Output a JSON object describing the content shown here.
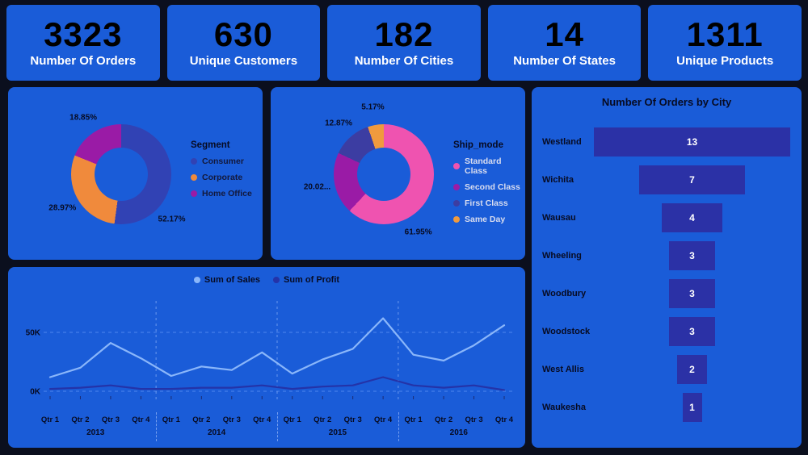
{
  "kpis": [
    {
      "value": "3323",
      "label": "Number Of Orders"
    },
    {
      "value": "630",
      "label": "Unique Customers"
    },
    {
      "value": "182",
      "label": "Number Of Cities"
    },
    {
      "value": "14",
      "label": "Number Of States"
    },
    {
      "value": "1311",
      "label": "Unique Products"
    }
  ],
  "colors": {
    "background": "#0b0f1e",
    "card": "#1a5cd8",
    "kpi_number": "#000000",
    "kpi_label": "#ffffff",
    "funnel_bar": "#2b31a6",
    "grid_line": "#4e86ee",
    "dark_text": "#070b22"
  },
  "chart_data": [
    {
      "type": "pie",
      "title": "Segment",
      "legend_title": "Segment",
      "legend_position": "right",
      "donut": true,
      "labels": [
        "Consumer",
        "Corporate",
        "Home Office"
      ],
      "values": [
        52.17,
        28.97,
        18.85
      ],
      "value_labels": [
        "52.17%",
        "28.97%",
        "18.85%"
      ],
      "colors": [
        "#3142b4",
        "#f08a3c",
        "#9a1ba6"
      ]
    },
    {
      "type": "pie",
      "title": "Ship_mode",
      "legend_title": "Ship_mode",
      "legend_position": "right",
      "donut": true,
      "labels": [
        "Standard Class",
        "Second Class",
        "First Class",
        "Same Day"
      ],
      "values": [
        61.95,
        20.02,
        12.87,
        5.17
      ],
      "value_labels": [
        "61.95%",
        "20.02...",
        "12.87%",
        "5.17%"
      ],
      "colors": [
        "#ef53b0",
        "#9a1ba6",
        "#3c3da2",
        "#f09a3e"
      ]
    },
    {
      "type": "line",
      "title": "",
      "legend_position": "top",
      "grid": "dashed",
      "unit": "K",
      "ylim": [
        0,
        65
      ],
      "yticks": [
        "0K",
        "50K"
      ],
      "ytick_values": [
        0,
        50
      ],
      "x": [
        "Qtr 1",
        "Qtr 2",
        "Qtr 3",
        "Qtr 4",
        "Qtr 1",
        "Qtr 2",
        "Qtr 3",
        "Qtr 4",
        "Qtr 1",
        "Qtr 2",
        "Qtr 3",
        "Qtr 4",
        "Qtr 1",
        "Qtr 2",
        "Qtr 3",
        "Qtr 4"
      ],
      "years": [
        "2013",
        "2014",
        "2015",
        "2016"
      ],
      "series": [
        {
          "name": "Sum of Sales",
          "color": "#8ab6fa",
          "values": [
            12,
            20,
            41,
            28,
            13,
            21,
            18,
            33,
            15,
            27,
            36,
            62,
            31,
            26,
            39,
            56
          ]
        },
        {
          "name": "Sum of Profit",
          "color": "#2433a8",
          "values": [
            2,
            3,
            5,
            2,
            2,
            3,
            3,
            5,
            2,
            4,
            5,
            12,
            5,
            3,
            5,
            1
          ]
        }
      ]
    },
    {
      "type": "bar",
      "orientation": "funnel",
      "title": "Number Of Orders  by City",
      "categories": [
        "Westland",
        "Wichita",
        "Wausau",
        "Wheeling",
        "Woodbury",
        "Woodstock",
        "West Allis",
        "Waukesha"
      ],
      "values": [
        13,
        7,
        4,
        3,
        3,
        3,
        2,
        1
      ]
    }
  ]
}
